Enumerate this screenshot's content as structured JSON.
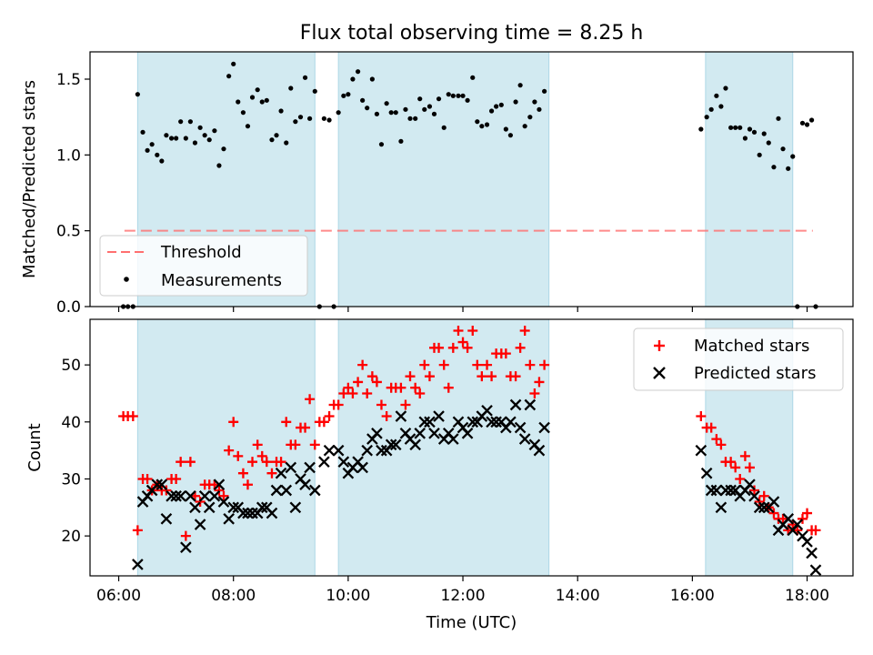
{
  "chart_data": {
    "title": "Flux total observing time = 8.25 h",
    "xlabel": "Time (UTC)",
    "x_unit": "hours UTC",
    "xlim": [
      5.5,
      18.8
    ],
    "xticks": [
      6,
      8,
      10,
      12,
      14,
      16,
      18
    ],
    "xtick_labels": [
      "06:00",
      "08:00",
      "10:00",
      "12:00",
      "14:00",
      "16:00",
      "18:00"
    ],
    "observing_intervals": [
      [
        6.33,
        9.42
      ],
      [
        9.83,
        13.5
      ],
      [
        16.23,
        17.75
      ]
    ],
    "colors": {
      "span": "#add8e6",
      "matched": "#ff0000",
      "predicted": "#000000",
      "threshold": "#ff6f6f",
      "measurement": "#000000"
    },
    "panels": [
      {
        "type": "scatter",
        "ylabel": "Matched/Predicted stars",
        "ylim": [
          0,
          1.68
        ],
        "yticks": [
          0.0,
          0.5,
          1.0,
          1.5
        ],
        "ytick_labels": [
          "0.0",
          "0.5",
          "1.0",
          "1.5"
        ],
        "legend_position": "lower-left",
        "threshold": {
          "name": "Threshold",
          "value": 0.5,
          "x_range": [
            6.1,
            18.1
          ]
        },
        "series": [
          {
            "name": "Measurements",
            "marker": "dot",
            "x": [
              6.08,
              6.16,
              6.25,
              6.33,
              6.42,
              6.5,
              6.58,
              6.67,
              6.75,
              6.83,
              6.92,
              7.0,
              7.08,
              7.17,
              7.25,
              7.33,
              7.42,
              7.5,
              7.58,
              7.67,
              7.75,
              7.83,
              7.92,
              8.0,
              8.08,
              8.17,
              8.25,
              8.33,
              8.42,
              8.5,
              8.58,
              8.67,
              8.75,
              8.83,
              8.92,
              9.0,
              9.08,
              9.17,
              9.25,
              9.33,
              9.42,
              9.5,
              9.58,
              9.67,
              9.75,
              9.83,
              9.92,
              10.0,
              10.08,
              10.17,
              10.25,
              10.33,
              10.42,
              10.5,
              10.58,
              10.67,
              10.75,
              10.83,
              10.92,
              11.0,
              11.08,
              11.17,
              11.25,
              11.33,
              11.42,
              11.5,
              11.58,
              11.67,
              11.75,
              11.83,
              11.92,
              12.0,
              12.08,
              12.17,
              12.25,
              12.33,
              12.42,
              12.5,
              12.58,
              12.67,
              12.75,
              12.83,
              12.92,
              13.0,
              13.08,
              13.17,
              13.25,
              13.33,
              13.42,
              16.15,
              16.25,
              16.33,
              16.42,
              16.5,
              16.58,
              16.67,
              16.75,
              16.83,
              16.92,
              17.0,
              17.08,
              17.17,
              17.25,
              17.33,
              17.42,
              17.5,
              17.58,
              17.67,
              17.75,
              17.83,
              17.92,
              18.0,
              18.08,
              18.15
            ],
            "y": [
              0.0,
              0.0,
              0.0,
              1.4,
              1.15,
              1.03,
              1.07,
              1.0,
              0.96,
              1.13,
              1.11,
              1.11,
              1.22,
              1.11,
              1.22,
              1.08,
              1.18,
              1.13,
              1.1,
              1.16,
              0.93,
              1.04,
              1.52,
              1.6,
              1.35,
              1.28,
              1.19,
              1.38,
              1.43,
              1.35,
              1.36,
              1.1,
              1.13,
              1.29,
              1.08,
              1.44,
              1.22,
              1.25,
              1.51,
              1.24,
              1.42,
              0.0,
              1.24,
              1.23,
              0.0,
              1.28,
              1.39,
              1.4,
              1.5,
              1.55,
              1.36,
              1.31,
              1.5,
              1.27,
              1.07,
              1.34,
              1.28,
              1.28,
              1.09,
              1.3,
              1.24,
              1.24,
              1.37,
              1.3,
              1.32,
              1.27,
              1.37,
              1.18,
              1.4,
              1.39,
              1.39,
              1.39,
              1.36,
              1.51,
              1.22,
              1.19,
              1.2,
              1.29,
              1.32,
              1.33,
              1.17,
              1.13,
              1.35,
              1.46,
              1.19,
              1.25,
              1.35,
              1.3,
              1.42,
              1.17,
              1.25,
              1.3,
              1.39,
              1.32,
              1.44,
              1.18,
              1.18,
              1.18,
              1.11,
              1.17,
              1.15,
              1.0,
              1.14,
              1.08,
              0.92,
              1.24,
              1.04,
              0.91,
              0.99,
              0.0,
              1.21,
              1.2,
              1.23,
              0.0
            ]
          }
        ]
      },
      {
        "type": "scatter",
        "ylabel": "Count",
        "ylim": [
          13,
          58
        ],
        "yticks": [
          20,
          30,
          40,
          50
        ],
        "ytick_labels": [
          "20",
          "30",
          "40",
          "50"
        ],
        "legend_position": "upper-right",
        "series": [
          {
            "name": "Matched stars",
            "marker": "plus",
            "x": [
              6.08,
              6.16,
              6.25,
              6.33,
              6.42,
              6.5,
              6.58,
              6.67,
              6.75,
              6.83,
              6.92,
              7.0,
              7.08,
              7.17,
              7.25,
              7.33,
              7.42,
              7.5,
              7.58,
              7.67,
              7.75,
              7.83,
              7.92,
              8.0,
              8.08,
              8.17,
              8.25,
              8.33,
              8.42,
              8.5,
              8.58,
              8.67,
              8.75,
              8.83,
              8.92,
              9.0,
              9.08,
              9.17,
              9.25,
              9.33,
              9.42,
              9.5,
              9.58,
              9.67,
              9.75,
              9.83,
              9.92,
              10.0,
              10.08,
              10.17,
              10.25,
              10.33,
              10.42,
              10.5,
              10.58,
              10.67,
              10.75,
              10.83,
              10.92,
              11.0,
              11.08,
              11.17,
              11.25,
              11.33,
              11.42,
              11.5,
              11.58,
              11.67,
              11.75,
              11.83,
              11.92,
              12.0,
              12.08,
              12.17,
              12.25,
              12.33,
              12.42,
              12.5,
              12.58,
              12.67,
              12.75,
              12.83,
              12.92,
              13.0,
              13.08,
              13.17,
              13.25,
              13.33,
              13.42,
              16.15,
              16.25,
              16.33,
              16.42,
              16.5,
              16.58,
              16.67,
              16.75,
              16.83,
              16.92,
              17.0,
              17.08,
              17.17,
              17.25,
              17.33,
              17.42,
              17.5,
              17.58,
              17.67,
              17.75,
              17.83,
              17.92,
              18.0,
              18.08,
              18.15
            ],
            "y": [
              41,
              41,
              41,
              21,
              30,
              30,
              28,
              29,
              28,
              28,
              30,
              30,
              33,
              20,
              33,
              27,
              26,
              29,
              29,
              29,
              28,
              27,
              35,
              40,
              34,
              31,
              29,
              33,
              36,
              34,
              33,
              31,
              33,
              33,
              40,
              36,
              36,
              39,
              39,
              44,
              36,
              40,
              40,
              41,
              43,
              43,
              45,
              46,
              45,
              47,
              50,
              45,
              48,
              47,
              43,
              41,
              46,
              46,
              46,
              43,
              48,
              46,
              45,
              50,
              48,
              53,
              53,
              50,
              46,
              53,
              56,
              54,
              53,
              56,
              50,
              48,
              50,
              48,
              52,
              52,
              52,
              48,
              48,
              53,
              56,
              50,
              45,
              47,
              50,
              41,
              39,
              39,
              37,
              36,
              33,
              33,
              32,
              30,
              34,
              32,
              28,
              26,
              27,
              25,
              24,
              23,
              23,
              21,
              22,
              21,
              23,
              24,
              21,
              21
            ]
          },
          {
            "name": "Predicted stars",
            "marker": "x",
            "x": [
              6.33,
              6.42,
              6.5,
              6.58,
              6.67,
              6.75,
              6.83,
              6.92,
              7.0,
              7.08,
              7.17,
              7.25,
              7.33,
              7.42,
              7.5,
              7.58,
              7.67,
              7.75,
              7.83,
              7.92,
              8.0,
              8.08,
              8.17,
              8.25,
              8.33,
              8.42,
              8.5,
              8.58,
              8.67,
              8.75,
              8.83,
              8.92,
              9.0,
              9.08,
              9.17,
              9.25,
              9.33,
              9.42,
              9.58,
              9.67,
              9.83,
              9.92,
              10.0,
              10.08,
              10.17,
              10.25,
              10.33,
              10.42,
              10.5,
              10.58,
              10.67,
              10.75,
              10.83,
              10.92,
              11.0,
              11.08,
              11.17,
              11.25,
              11.33,
              11.42,
              11.5,
              11.58,
              11.67,
              11.75,
              11.83,
              11.92,
              12.0,
              12.08,
              12.17,
              12.25,
              12.33,
              12.42,
              12.5,
              12.58,
              12.67,
              12.75,
              12.83,
              12.92,
              13.0,
              13.08,
              13.17,
              13.25,
              13.33,
              13.42,
              16.15,
              16.25,
              16.33,
              16.42,
              16.5,
              16.58,
              16.67,
              16.75,
              16.83,
              16.92,
              17.0,
              17.08,
              17.17,
              17.25,
              17.33,
              17.42,
              17.5,
              17.58,
              17.67,
              17.75,
              17.83,
              17.92,
              18.0,
              18.08,
              18.15
            ],
            "y": [
              15,
              26,
              27,
              28,
              29,
              29,
              23,
              27,
              27,
              27,
              18,
              27,
              25,
              22,
              27,
              25,
              27,
              29,
              26,
              23,
              25,
              25,
              24,
              24,
              24,
              24,
              25,
              25,
              24,
              28,
              31,
              28,
              32,
              25,
              30,
              29,
              32,
              28,
              33,
              35,
              35,
              33,
              31,
              32,
              33,
              32,
              35,
              37,
              38,
              35,
              35,
              36,
              36,
              41,
              38,
              37,
              36,
              38,
              40,
              40,
              38,
              41,
              37,
              38,
              37,
              40,
              39,
              38,
              40,
              40,
              41,
              42,
              40,
              40,
              40,
              39,
              40,
              43,
              39,
              37,
              43,
              36,
              35,
              39,
              35,
              31,
              28,
              28,
              25,
              28,
              28,
              28,
              27,
              28,
              29,
              27,
              25,
              25,
              25,
              26,
              21,
              22,
              23,
              21,
              22,
              20,
              19,
              17,
              14
            ]
          }
        ]
      }
    ]
  }
}
